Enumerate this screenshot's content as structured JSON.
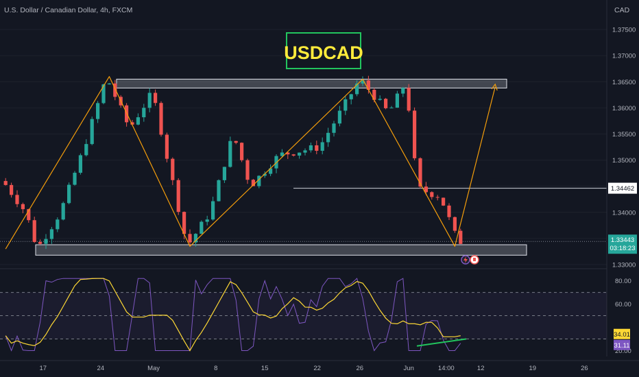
{
  "header": {
    "symbol_text": "U.S. Dollar / Canadian Dollar, 4h, FXCM",
    "currency": "CAD"
  },
  "chart_title": "USDCAD",
  "colors": {
    "background": "#131722",
    "up": "#26a69a",
    "down": "#ef5350",
    "title_text": "#ffeb3b",
    "title_border": "#22c55e",
    "zone_fill": "#d1d4dc",
    "pattern_line": "#f59e0b",
    "rsi_line": "#7e57c2",
    "rsi_ma": "#fdd835",
    "divergence": "#22c55e",
    "axis_text": "#b2b5be"
  },
  "chart_data": {
    "type": "candlestick",
    "ylim": [
      1.33,
      1.3775
    ],
    "y_ticks": [
      "1.37500",
      "1.37000",
      "1.36500",
      "1.36000",
      "1.35500",
      "1.35000",
      "1.34500",
      "1.34000",
      "1.33500",
      "1.33000"
    ],
    "x_ticks": [
      "17",
      "24",
      "May",
      "8",
      "15",
      "22",
      "26",
      "Jun",
      "14:00",
      "12",
      "19",
      "26"
    ],
    "price_labels": {
      "level": "1.34462",
      "current": "1.33443",
      "countdown": "03:18:23"
    },
    "resistance_zone": [
      1.3638,
      1.3655
    ],
    "support_zone": [
      1.3318,
      1.3338
    ],
    "horizontal_level": 1.34462,
    "pattern_path": [
      [
        0,
        1.333
      ],
      [
        18,
        1.366
      ],
      [
        32,
        1.3335
      ],
      [
        62,
        1.3655
      ],
      [
        78,
        1.3335
      ],
      [
        85,
        1.364
      ]
    ],
    "price_anchors": [
      [
        0,
        1.346
      ],
      [
        4,
        1.34
      ],
      [
        6,
        1.333
      ],
      [
        10,
        1.34
      ],
      [
        14,
        1.352
      ],
      [
        18,
        1.366
      ],
      [
        22,
        1.356
      ],
      [
        26,
        1.363
      ],
      [
        32,
        1.3335
      ],
      [
        36,
        1.34
      ],
      [
        40,
        1.355
      ],
      [
        43,
        1.345
      ],
      [
        48,
        1.351
      ],
      [
        55,
        1.3525
      ],
      [
        62,
        1.3655
      ],
      [
        67,
        1.359
      ],
      [
        70,
        1.365
      ],
      [
        72,
        1.3446
      ],
      [
        76,
        1.343
      ],
      [
        79,
        1.3344
      ]
    ],
    "rsi": {
      "ylim": [
        15,
        88
      ],
      "y_ticks": [
        "80.00",
        "60.00",
        "20.00"
      ],
      "levels": [
        70,
        50,
        30
      ],
      "value": "31.11",
      "ma_value": "34.01"
    }
  }
}
